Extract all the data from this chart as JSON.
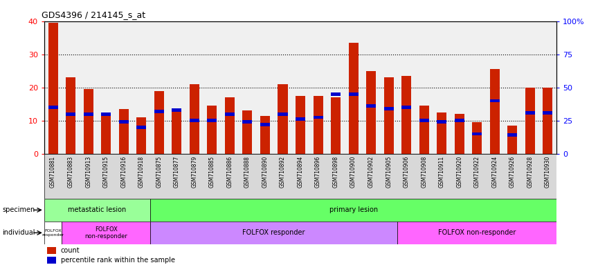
{
  "title": "GDS4396 / 214145_s_at",
  "samples": [
    "GSM710881",
    "GSM710883",
    "GSM710913",
    "GSM710915",
    "GSM710916",
    "GSM710918",
    "GSM710875",
    "GSM710877",
    "GSM710879",
    "GSM710885",
    "GSM710886",
    "GSM710888",
    "GSM710890",
    "GSM710892",
    "GSM710894",
    "GSM710896",
    "GSM710898",
    "GSM710900",
    "GSM710902",
    "GSM710905",
    "GSM710906",
    "GSM710908",
    "GSM710911",
    "GSM710920",
    "GSM710922",
    "GSM710924",
    "GSM710926",
    "GSM710928",
    "GSM710930"
  ],
  "counts": [
    39.5,
    23.0,
    19.5,
    12.5,
    13.5,
    11.0,
    19.0,
    13.5,
    21.0,
    14.5,
    17.0,
    13.0,
    11.5,
    21.0,
    17.5,
    17.5,
    17.0,
    33.5,
    25.0,
    23.0,
    23.5,
    14.5,
    12.5,
    12.0,
    9.5,
    25.5,
    8.5,
    20.0,
    20.0
  ],
  "percentile_ranks": [
    35.0,
    30.0,
    30.0,
    30.0,
    24.0,
    20.0,
    32.0,
    33.0,
    25.0,
    25.0,
    30.0,
    24.0,
    22.0,
    30.0,
    26.0,
    27.5,
    45.0,
    45.0,
    36.0,
    34.0,
    35.0,
    25.0,
    24.0,
    25.0,
    15.0,
    40.0,
    14.0,
    31.0,
    31.0
  ],
  "bar_color": "#cc2200",
  "percentile_color": "#0000cc",
  "ylim_left": [
    0,
    40
  ],
  "ylim_right": [
    0,
    100
  ],
  "yticks_left": [
    0,
    10,
    20,
    30,
    40
  ],
  "yticks_right": [
    0,
    25,
    50,
    75,
    100
  ],
  "yticklabels_right": [
    "0",
    "25",
    "50",
    "75",
    "100%"
  ],
  "specimen_metastatic_color": "#99ff99",
  "specimen_primary_color": "#66ff66",
  "individual_white_color": "#ffffff",
  "individual_magenta_color": "#ff66ff",
  "individual_purple_color": "#cc88ff",
  "bar_width": 0.55
}
